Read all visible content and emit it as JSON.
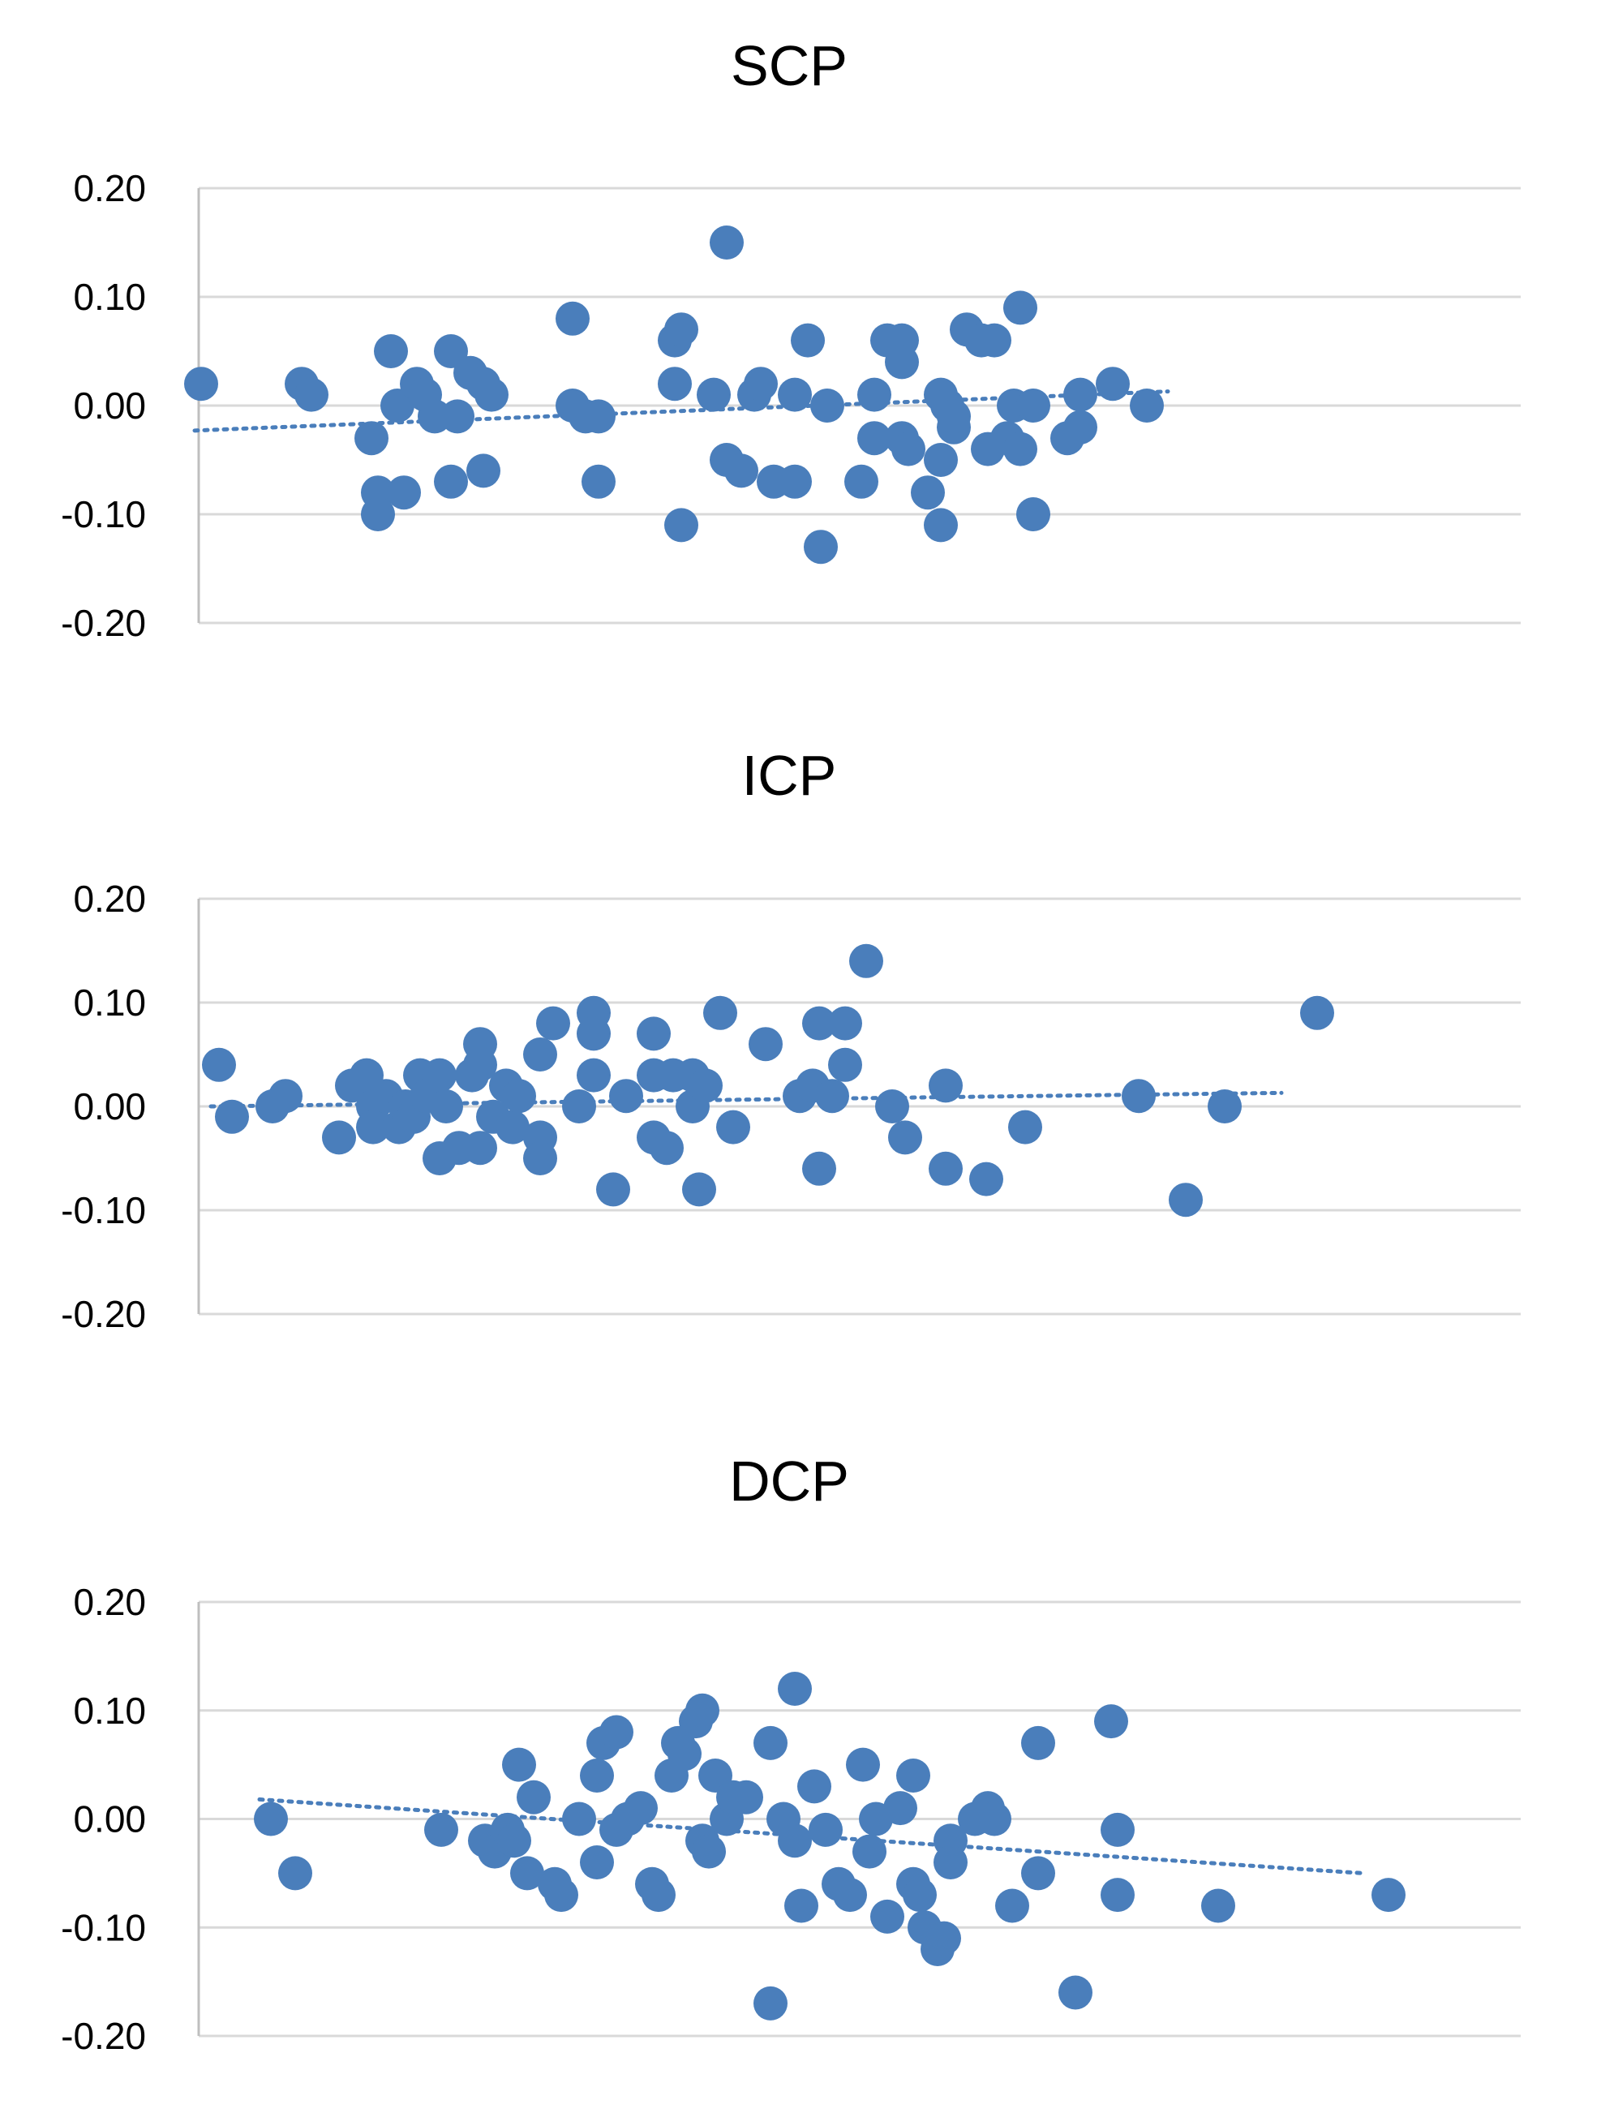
{
  "colors": {
    "marker": "#4a7ebb",
    "trend": "#4a7ebb",
    "grid": "#d9d9d9",
    "axis": "#bfbfbf"
  },
  "chart_data": [
    {
      "type": "scatter",
      "title": "SCP",
      "xlabel": "",
      "ylabel": "",
      "ylim": [
        -0.2,
        0.2
      ],
      "yticks": [
        -0.2,
        -0.1,
        0.0,
        0.1,
        0.2
      ],
      "ytick_labels": [
        "-0.20",
        "-0.10",
        "0.00",
        "0.10",
        "0.20"
      ],
      "xlim": [
        0,
        1
      ],
      "grid": true,
      "legend": false,
      "x_axis_labels": false,
      "trendline": {
        "style": "dotted",
        "x": [
          0.12,
          0.72
        ],
        "y": [
          -0.023,
          0.013
        ]
      },
      "points": [
        [
          0.124,
          0.02
        ],
        [
          0.186,
          0.02
        ],
        [
          0.192,
          0.01
        ],
        [
          0.229,
          -0.03
        ],
        [
          0.233,
          -0.08
        ],
        [
          0.233,
          -0.1
        ],
        [
          0.241,
          0.05
        ],
        [
          0.249,
          -0.08
        ],
        [
          0.245,
          0.0
        ],
        [
          0.257,
          0.02
        ],
        [
          0.262,
          0.01
        ],
        [
          0.268,
          -0.01
        ],
        [
          0.278,
          0.05
        ],
        [
          0.278,
          -0.07
        ],
        [
          0.282,
          -0.01
        ],
        [
          0.29,
          0.03
        ],
        [
          0.298,
          0.02
        ],
        [
          0.298,
          -0.06
        ],
        [
          0.303,
          0.01
        ],
        [
          0.353,
          0.08
        ],
        [
          0.353,
          0.0
        ],
        [
          0.361,
          -0.01
        ],
        [
          0.369,
          -0.01
        ],
        [
          0.369,
          -0.07
        ],
        [
          0.416,
          0.06
        ],
        [
          0.42,
          0.07
        ],
        [
          0.416,
          0.02
        ],
        [
          0.42,
          -0.11
        ],
        [
          0.44,
          0.01
        ],
        [
          0.448,
          0.15
        ],
        [
          0.448,
          -0.05
        ],
        [
          0.457,
          -0.06
        ],
        [
          0.465,
          0.01
        ],
        [
          0.469,
          0.02
        ],
        [
          0.477,
          -0.07
        ],
        [
          0.49,
          0.01
        ],
        [
          0.49,
          -0.07
        ],
        [
          0.498,
          0.06
        ],
        [
          0.506,
          -0.13
        ],
        [
          0.51,
          0.0
        ],
        [
          0.539,
          0.01
        ],
        [
          0.539,
          -0.03
        ],
        [
          0.531,
          -0.07
        ],
        [
          0.547,
          0.06
        ],
        [
          0.556,
          0.06
        ],
        [
          0.556,
          0.04
        ],
        [
          0.556,
          -0.03
        ],
        [
          0.56,
          -0.04
        ],
        [
          0.572,
          -0.08
        ],
        [
          0.58,
          -0.05
        ],
        [
          0.58,
          0.01
        ],
        [
          0.584,
          0.0
        ],
        [
          0.58,
          -0.11
        ],
        [
          0.588,
          -0.02
        ],
        [
          0.588,
          -0.01
        ],
        [
          0.596,
          0.07
        ],
        [
          0.605,
          0.06
        ],
        [
          0.613,
          0.06
        ],
        [
          0.609,
          -0.04
        ],
        [
          0.621,
          -0.03
        ],
        [
          0.629,
          0.09
        ],
        [
          0.629,
          -0.04
        ],
        [
          0.625,
          0.0
        ],
        [
          0.637,
          -0.1
        ],
        [
          0.637,
          0.0
        ],
        [
          0.658,
          -0.03
        ],
        [
          0.666,
          0.01
        ],
        [
          0.666,
          -0.02
        ],
        [
          0.686,
          0.02
        ],
        [
          0.707,
          0.0
        ]
      ]
    },
    {
      "type": "scatter",
      "title": "ICP",
      "xlabel": "",
      "ylabel": "",
      "ylim": [
        -0.2,
        0.2
      ],
      "yticks": [
        -0.2,
        -0.1,
        0.0,
        0.1,
        0.2
      ],
      "ytick_labels": [
        "-0.20",
        "-0.10",
        "0.00",
        "0.10",
        "0.20"
      ],
      "xlim": [
        0,
        1
      ],
      "grid": true,
      "legend": false,
      "x_axis_labels": false,
      "trendline": {
        "style": "dotted",
        "x": [
          0.13,
          0.79
        ],
        "y": [
          0.0,
          0.013
        ]
      },
      "points": [
        [
          0.135,
          0.04
        ],
        [
          0.143,
          -0.01
        ],
        [
          0.168,
          0.0
        ],
        [
          0.176,
          0.01
        ],
        [
          0.209,
          -0.03
        ],
        [
          0.217,
          0.02
        ],
        [
          0.226,
          0.03
        ],
        [
          0.23,
          0.0
        ],
        [
          0.23,
          -0.02
        ],
        [
          0.238,
          0.01
        ],
        [
          0.246,
          -0.02
        ],
        [
          0.25,
          0.0
        ],
        [
          0.255,
          -0.01
        ],
        [
          0.259,
          0.03
        ],
        [
          0.263,
          0.01
        ],
        [
          0.271,
          0.03
        ],
        [
          0.271,
          -0.05
        ],
        [
          0.275,
          0.0
        ],
        [
          0.283,
          -0.04
        ],
        [
          0.291,
          0.03
        ],
        [
          0.296,
          0.06
        ],
        [
          0.296,
          0.04
        ],
        [
          0.296,
          -0.04
        ],
        [
          0.304,
          -0.01
        ],
        [
          0.312,
          0.02
        ],
        [
          0.316,
          -0.02
        ],
        [
          0.32,
          0.01
        ],
        [
          0.333,
          0.05
        ],
        [
          0.333,
          -0.03
        ],
        [
          0.333,
          -0.05
        ],
        [
          0.341,
          0.08
        ],
        [
          0.357,
          0.0
        ],
        [
          0.366,
          0.09
        ],
        [
          0.366,
          0.07
        ],
        [
          0.366,
          0.03
        ],
        [
          0.378,
          -0.08
        ],
        [
          0.386,
          0.01
        ],
        [
          0.403,
          0.07
        ],
        [
          0.403,
          0.03
        ],
        [
          0.403,
          -0.03
        ],
        [
          0.411,
          -0.04
        ],
        [
          0.415,
          0.03
        ],
        [
          0.427,
          0.03
        ],
        [
          0.427,
          0.0
        ],
        [
          0.431,
          -0.08
        ],
        [
          0.435,
          0.02
        ],
        [
          0.444,
          0.09
        ],
        [
          0.452,
          -0.02
        ],
        [
          0.472,
          0.06
        ],
        [
          0.493,
          0.01
        ],
        [
          0.501,
          0.02
        ],
        [
          0.505,
          0.08
        ],
        [
          0.505,
          -0.06
        ],
        [
          0.513,
          0.01
        ],
        [
          0.521,
          0.08
        ],
        [
          0.521,
          0.04
        ],
        [
          0.534,
          0.14
        ],
        [
          0.55,
          0.0
        ],
        [
          0.558,
          -0.03
        ],
        [
          0.583,
          0.02
        ],
        [
          0.583,
          -0.06
        ],
        [
          0.608,
          -0.07
        ],
        [
          0.632,
          -0.02
        ],
        [
          0.702,
          0.01
        ],
        [
          0.731,
          -0.09
        ],
        [
          0.755,
          0.0
        ],
        [
          0.812,
          0.09
        ]
      ]
    },
    {
      "type": "scatter",
      "title": "DCP",
      "xlabel": "",
      "ylabel": "",
      "ylim": [
        -0.2,
        0.2
      ],
      "yticks": [
        -0.2,
        -0.1,
        0.0,
        0.1,
        0.2
      ],
      "ytick_labels": [
        "-0.20",
        "-0.10",
        "0.00",
        "0.10",
        "0.20"
      ],
      "xlim": [
        0,
        1
      ],
      "grid": true,
      "legend": false,
      "x_axis_labels": false,
      "trendline": {
        "style": "dotted",
        "x": [
          0.16,
          0.84
        ],
        "y": [
          0.018,
          -0.05
        ]
      },
      "points": [
        [
          0.167,
          0.0
        ],
        [
          0.182,
          -0.05
        ],
        [
          0.272,
          -0.01
        ],
        [
          0.299,
          -0.02
        ],
        [
          0.305,
          -0.03
        ],
        [
          0.313,
          -0.01
        ],
        [
          0.317,
          -0.02
        ],
        [
          0.32,
          0.05
        ],
        [
          0.325,
          -0.05
        ],
        [
          0.329,
          0.02
        ],
        [
          0.342,
          -0.06
        ],
        [
          0.346,
          -0.07
        ],
        [
          0.357,
          0.0
        ],
        [
          0.368,
          0.04
        ],
        [
          0.368,
          -0.04
        ],
        [
          0.372,
          0.07
        ],
        [
          0.38,
          0.08
        ],
        [
          0.38,
          -0.01
        ],
        [
          0.387,
          0.0
        ],
        [
          0.395,
          0.01
        ],
        [
          0.402,
          -0.06
        ],
        [
          0.406,
          -0.07
        ],
        [
          0.414,
          0.04
        ],
        [
          0.418,
          0.07
        ],
        [
          0.422,
          0.06
        ],
        [
          0.429,
          0.09
        ],
        [
          0.433,
          0.1
        ],
        [
          0.433,
          -0.02
        ],
        [
          0.437,
          -0.03
        ],
        [
          0.441,
          0.04
        ],
        [
          0.448,
          0.0
        ],
        [
          0.452,
          0.02
        ],
        [
          0.46,
          0.02
        ],
        [
          0.475,
          0.07
        ],
        [
          0.475,
          -0.17
        ],
        [
          0.483,
          0.0
        ],
        [
          0.49,
          0.12
        ],
        [
          0.49,
          -0.02
        ],
        [
          0.494,
          -0.08
        ],
        [
          0.502,
          0.03
        ],
        [
          0.509,
          -0.01
        ],
        [
          0.517,
          -0.06
        ],
        [
          0.524,
          -0.07
        ],
        [
          0.532,
          0.05
        ],
        [
          0.536,
          -0.03
        ],
        [
          0.54,
          0.0
        ],
        [
          0.547,
          -0.09
        ],
        [
          0.555,
          0.01
        ],
        [
          0.563,
          0.04
        ],
        [
          0.563,
          -0.06
        ],
        [
          0.567,
          -0.07
        ],
        [
          0.57,
          -0.1
        ],
        [
          0.578,
          -0.12
        ],
        [
          0.582,
          -0.11
        ],
        [
          0.586,
          -0.02
        ],
        [
          0.586,
          -0.04
        ],
        [
          0.601,
          0.0
        ],
        [
          0.609,
          0.01
        ],
        [
          0.613,
          0.0
        ],
        [
          0.624,
          -0.08
        ],
        [
          0.64,
          -0.05
        ],
        [
          0.64,
          0.07
        ],
        [
          0.663,
          -0.16
        ],
        [
          0.685,
          0.09
        ],
        [
          0.689,
          -0.01
        ],
        [
          0.689,
          -0.07
        ],
        [
          0.751,
          -0.08
        ],
        [
          0.856,
          -0.07
        ]
      ]
    }
  ]
}
